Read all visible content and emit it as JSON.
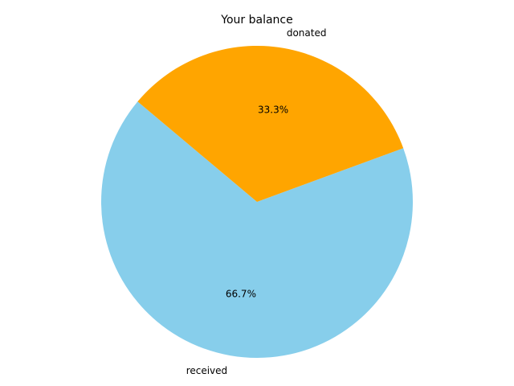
{
  "chart_data": {
    "type": "pie",
    "title": "Your balance",
    "start_angle_deg": 140,
    "direction": "counterclockwise",
    "slices": [
      {
        "label": "received",
        "value": 66.7,
        "pct_label": "66.7%",
        "color": "#87CEEB"
      },
      {
        "label": "donated",
        "value": 33.3,
        "pct_label": "33.3%",
        "color": "#FFA500"
      }
    ]
  }
}
